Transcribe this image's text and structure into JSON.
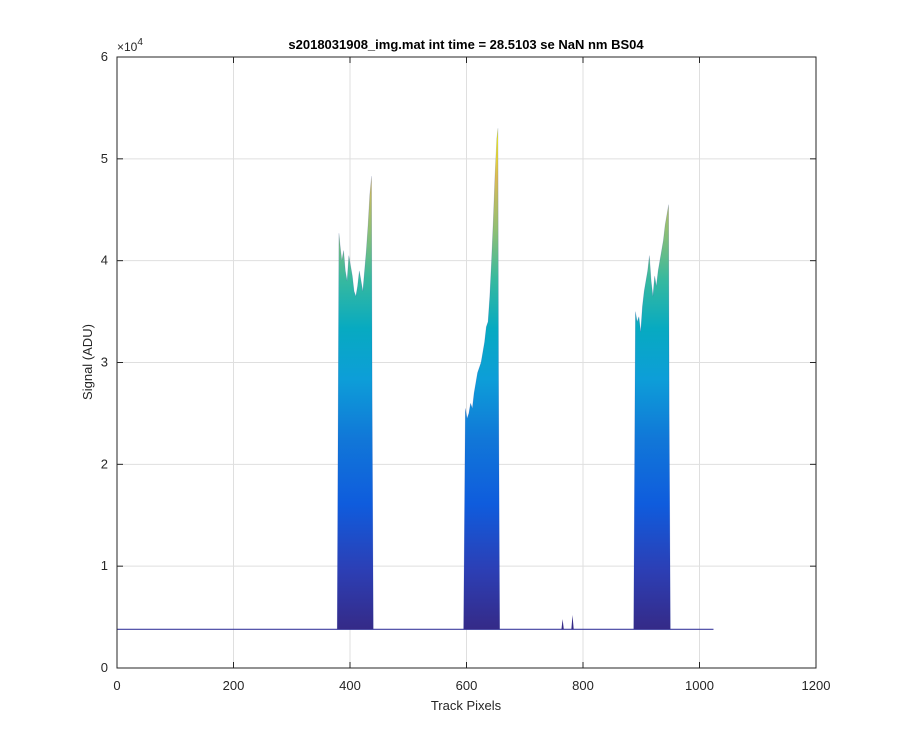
{
  "chart_data": {
    "type": "area",
    "title": "s2018031908_img.mat int time = 28.5103 se  NaN nm BS04",
    "xlabel": "Track Pixels",
    "ylabel": "Signal (ADU)",
    "xlim": [
      0,
      1200
    ],
    "ylim": [
      0,
      60000
    ],
    "xticks": [
      0,
      200,
      400,
      600,
      800,
      1000,
      1200
    ],
    "xtick_labels": [
      "0",
      "200",
      "400",
      "600",
      "800",
      "1000",
      "1200"
    ],
    "yticks": [
      0,
      10000,
      20000,
      30000,
      40000,
      50000,
      60000
    ],
    "ytick_labels": [
      "0",
      "1",
      "2",
      "3",
      "4",
      "5",
      "6"
    ],
    "y_exponent_label": "×10",
    "y_exponent_power": "4",
    "grid": true,
    "colormap": "parula",
    "colors": {
      "low": "#352a87",
      "mid": "#0d9ed8",
      "high": "#f9fb0e",
      "baseline": "#3f3f9f"
    },
    "baseline": 3800,
    "x_max": 1024,
    "peaks": [
      {
        "x": [
          381,
          383,
          386,
          389,
          392,
          395,
          398,
          401,
          404,
          407,
          410,
          413,
          416,
          419,
          422,
          425,
          428,
          431,
          434,
          437
        ],
        "y": [
          42700,
          41500,
          40000,
          41000,
          39000,
          38000,
          40500,
          39500,
          38500,
          37000,
          36500,
          37500,
          39000,
          38000,
          37000,
          39000,
          41000,
          43500,
          46500,
          48300
        ]
      },
      {
        "x": [
          598,
          601,
          604,
          607,
          610,
          613,
          616,
          619,
          622,
          625,
          628,
          631,
          634,
          637,
          640,
          643,
          646,
          649,
          652,
          654
        ],
        "y": [
          25500,
          24500,
          25000,
          26000,
          25500,
          27000,
          28000,
          29000,
          29500,
          30000,
          31000,
          32000,
          33500,
          34000,
          36500,
          40000,
          44000,
          48500,
          52000,
          53000
        ]
      },
      {
        "x": [
          890,
          893,
          896,
          899,
          902,
          905,
          908,
          911,
          914,
          917,
          920,
          923,
          926,
          929,
          932,
          935,
          938,
          941,
          944,
          947
        ],
        "y": [
          35000,
          34000,
          34500,
          33000,
          35500,
          37000,
          38000,
          39000,
          40500,
          38000,
          36500,
          38500,
          37500,
          39000,
          40000,
          41000,
          42000,
          43500,
          44500,
          45500
        ]
      }
    ],
    "spikes": [
      {
        "x": 765,
        "y": 4800
      },
      {
        "x": 782,
        "y": 5200
      }
    ]
  }
}
